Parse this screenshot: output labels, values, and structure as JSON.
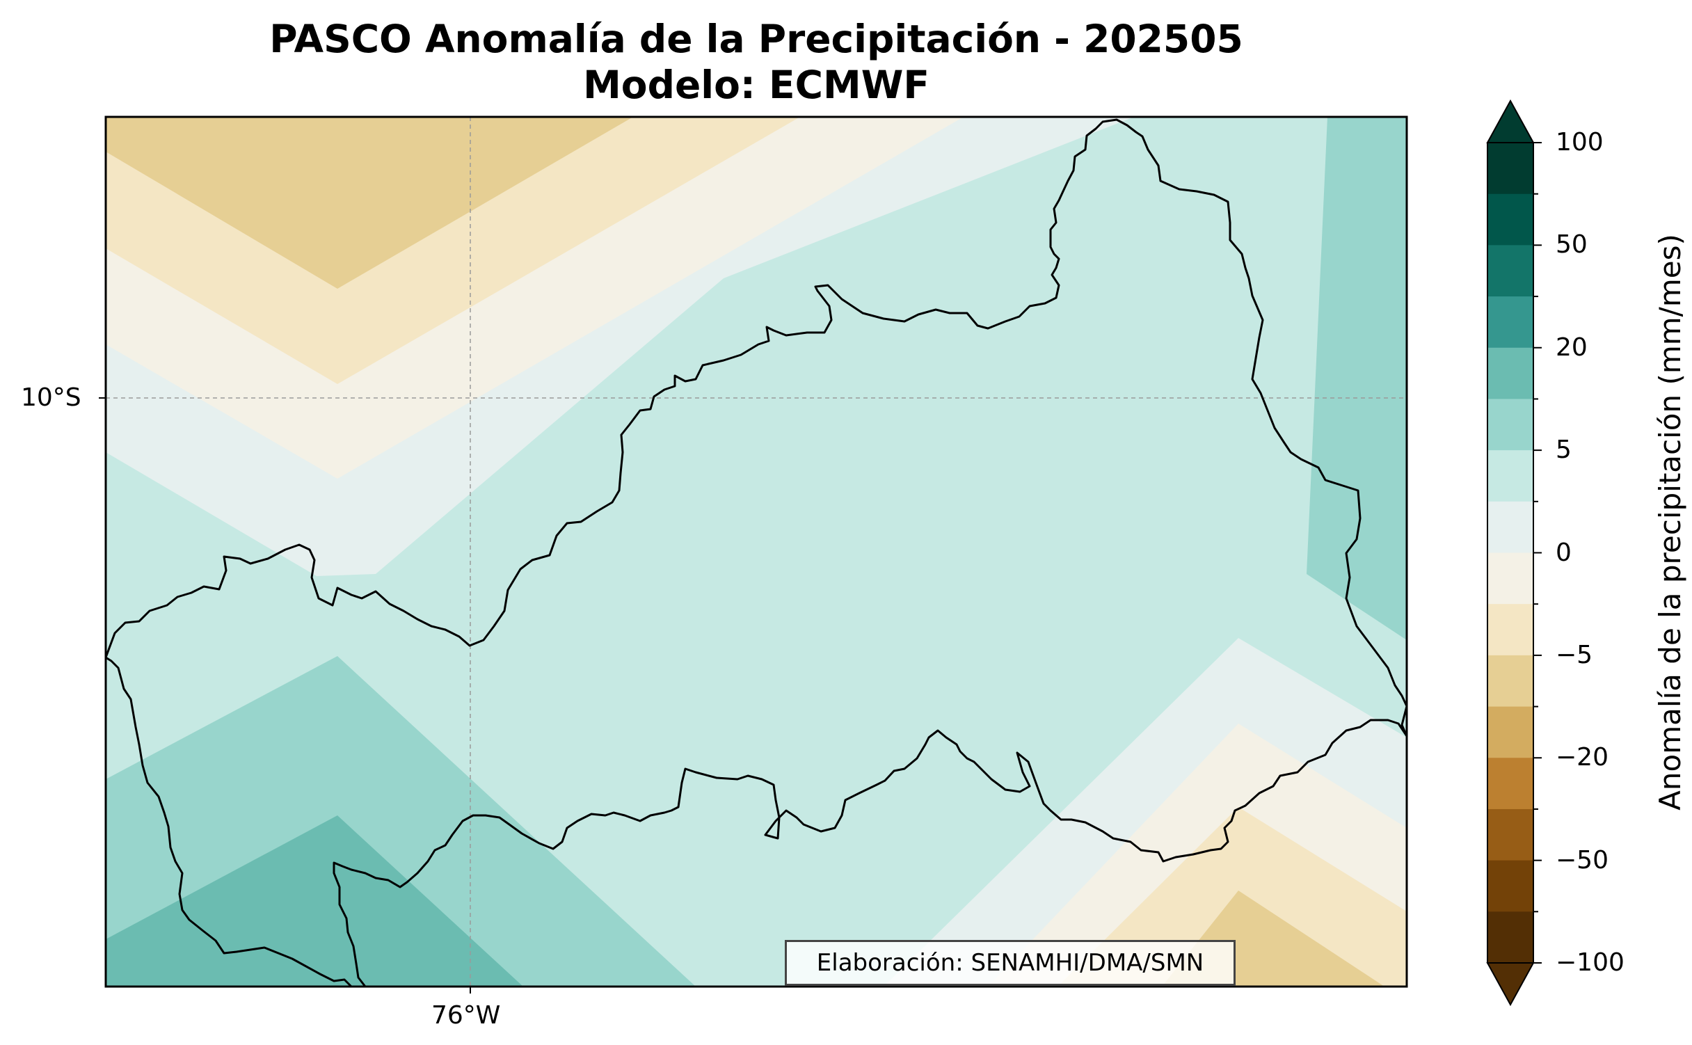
{
  "title_line1": "PASCO Anomalía de la Precipitación - 202505",
  "title_line2": "Modelo: ECMWF",
  "gridlines": {
    "latitude_label": "10°S",
    "longitude_label": "76°W"
  },
  "credit": "Elaboración: SENAMHI/DMA/SMN",
  "colorbar": {
    "title": "Anomalía de la precipitación (mm/mes)",
    "tick_labels": [
      "100",
      "50",
      "20",
      "5",
      "0",
      "−5",
      "−20",
      "−50",
      "−100"
    ],
    "colors_top_to_bottom": [
      "#013c30",
      "#01574b",
      "#137569",
      "#35978f",
      "#6bbcb1",
      "#98d5cc",
      "#c6e9e3",
      "#e6f0ef",
      "#f4f1e6",
      "#f4e6c4",
      "#e6cf94",
      "#d3ac60",
      "#bc8030",
      "#975d16",
      "#734208",
      "#532f05"
    ],
    "extend": "both"
  },
  "map_fill_colors": {
    "dark_teal": "#6bbcb1",
    "teal": "#98d5cc",
    "light_teal": "#c6e9e3",
    "very_light_teal": "#e6f0ef",
    "cream": "#f4f1e6",
    "light_tan": "#f4e6c4",
    "tan": "#e6cf94"
  }
}
